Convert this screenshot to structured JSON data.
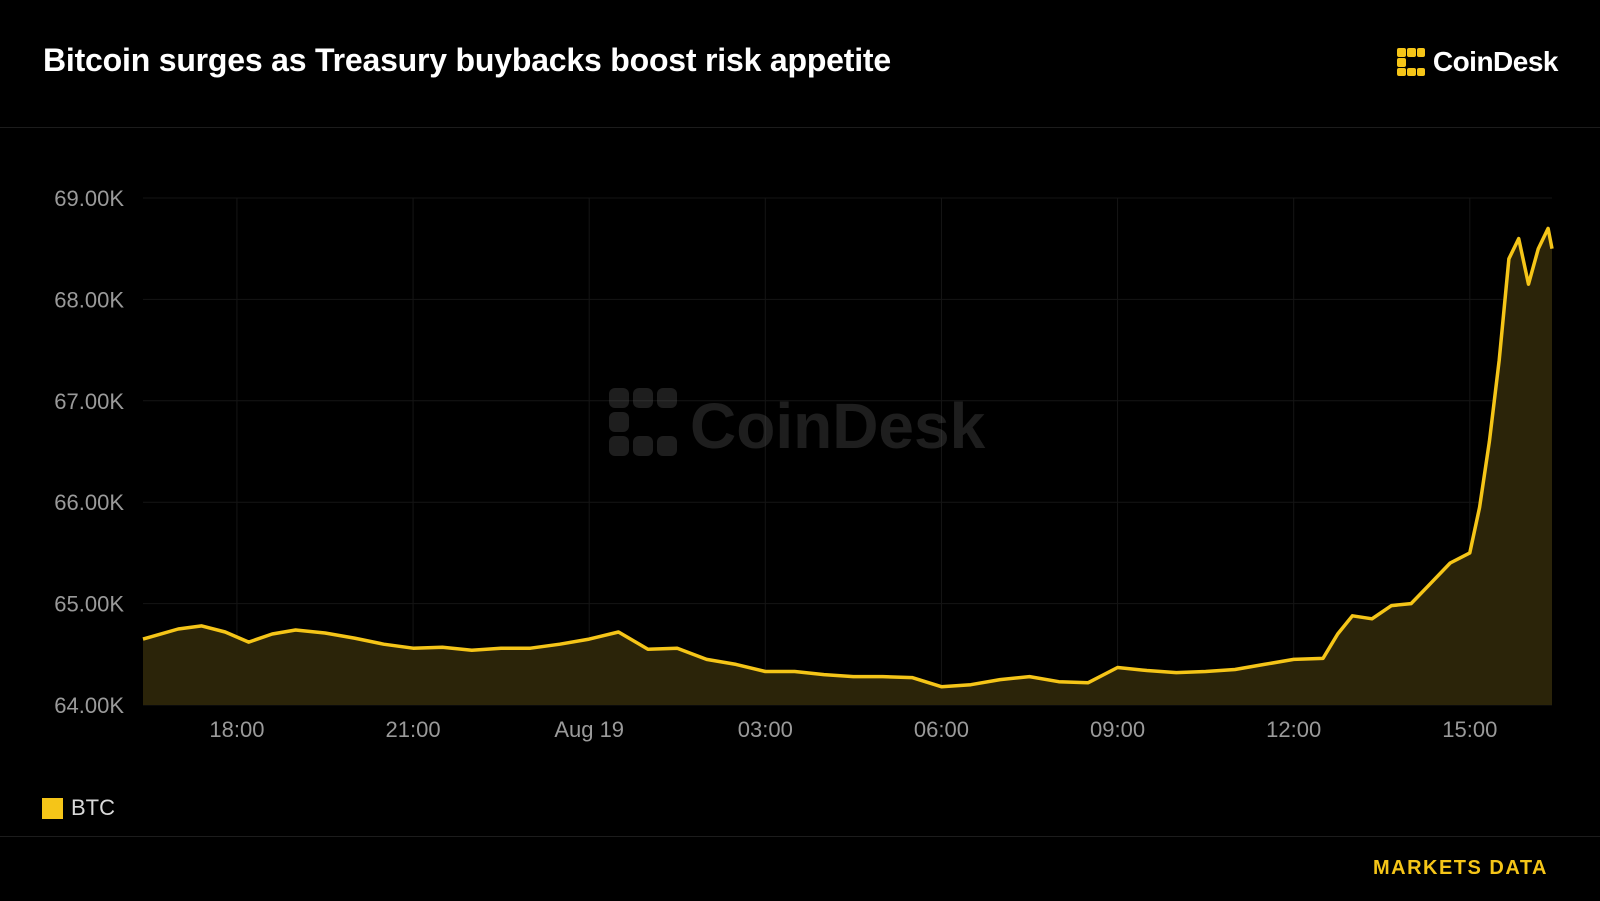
{
  "header": {
    "title": "Bitcoin surges as Treasury buybacks boost risk appetite",
    "brand": "CoinDesk"
  },
  "watermark": "CoinDesk",
  "footer": {
    "label": "MARKETS DATA"
  },
  "colors": {
    "accent": "#f5c518",
    "background": "#000000",
    "fill": "#2b2409"
  },
  "icons": {
    "brand_logo": "coindesk-logo-icon"
  },
  "chart_data": {
    "type": "area",
    "title": "",
    "xlabel": "",
    "ylabel": "",
    "ylim": [
      64000,
      69000
    ],
    "yticks": [
      64000,
      65000,
      66000,
      67000,
      68000,
      69000
    ],
    "ytick_labels": [
      "64.00K",
      "65.00K",
      "66.00K",
      "67.00K",
      "68.00K",
      "69.00K"
    ],
    "xlim": [
      "Aug 18 16:24",
      "Aug 19 16:24"
    ],
    "xticks": [
      "Aug 18 18:00",
      "Aug 18 21:00",
      "Aug 19 00:00",
      "Aug 19 03:00",
      "Aug 19 06:00",
      "Aug 19 09:00",
      "Aug 19 12:00",
      "Aug 19 15:00"
    ],
    "xtick_labels": [
      "18:00",
      "21:00",
      "Aug 19",
      "03:00",
      "06:00",
      "09:00",
      "12:00",
      "15:00"
    ],
    "grid": true,
    "legend": "bottom-left",
    "series": [
      {
        "name": "BTC",
        "x": [
          "Aug 18 16:24",
          "Aug 18 17:00",
          "Aug 18 17:24",
          "Aug 18 17:48",
          "Aug 18 18:12",
          "Aug 18 18:36",
          "Aug 18 19:00",
          "Aug 18 19:30",
          "Aug 18 20:00",
          "Aug 18 20:30",
          "Aug 18 21:00",
          "Aug 18 21:30",
          "Aug 18 22:00",
          "Aug 18 22:30",
          "Aug 18 23:00",
          "Aug 18 23:30",
          "Aug 19 00:00",
          "Aug 19 00:30",
          "Aug 19 01:00",
          "Aug 19 01:30",
          "Aug 19 02:00",
          "Aug 19 02:30",
          "Aug 19 03:00",
          "Aug 19 03:30",
          "Aug 19 04:00",
          "Aug 19 04:30",
          "Aug 19 05:00",
          "Aug 19 05:30",
          "Aug 19 06:00",
          "Aug 19 06:30",
          "Aug 19 07:00",
          "Aug 19 07:30",
          "Aug 19 08:00",
          "Aug 19 08:30",
          "Aug 19 09:00",
          "Aug 19 09:30",
          "Aug 19 10:00",
          "Aug 19 10:30",
          "Aug 19 11:00",
          "Aug 19 11:30",
          "Aug 19 12:00",
          "Aug 19 12:30",
          "Aug 19 12:45",
          "Aug 19 13:00",
          "Aug 19 13:20",
          "Aug 19 13:40",
          "Aug 19 14:00",
          "Aug 19 14:20",
          "Aug 19 14:40",
          "Aug 19 15:00",
          "Aug 19 15:10",
          "Aug 19 15:20",
          "Aug 19 15:30",
          "Aug 19 15:40",
          "Aug 19 15:50",
          "Aug 19 16:00",
          "Aug 19 16:10",
          "Aug 19 16:20",
          "Aug 19 16:24"
        ],
        "values": [
          64650,
          64750,
          64780,
          64720,
          64620,
          64700,
          64740,
          64710,
          64660,
          64600,
          64560,
          64570,
          64540,
          64560,
          64560,
          64600,
          64650,
          64720,
          64550,
          64560,
          64450,
          64400,
          64330,
          64330,
          64300,
          64280,
          64280,
          64270,
          64180,
          64200,
          64250,
          64280,
          64230,
          64220,
          64370,
          64340,
          64320,
          64330,
          64350,
          64400,
          64450,
          64460,
          64700,
          64880,
          64850,
          64980,
          65000,
          65200,
          65400,
          65500,
          65950,
          66600,
          67400,
          68400,
          68600,
          68150,
          68500,
          68700,
          68500
        ]
      }
    ]
  }
}
